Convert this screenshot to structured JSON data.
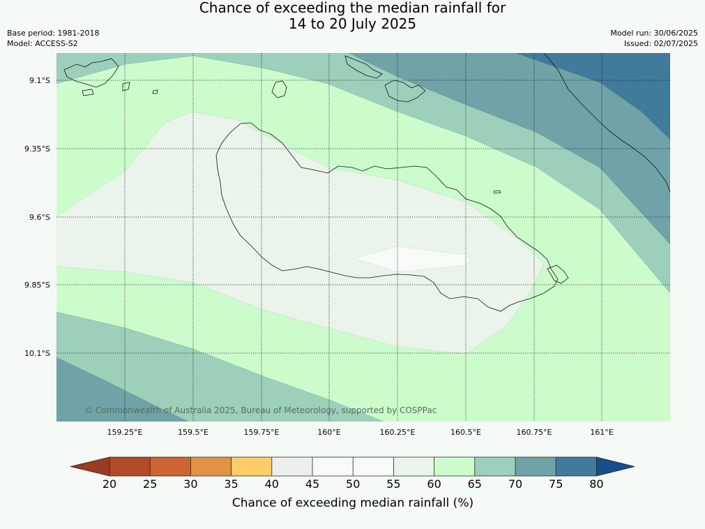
{
  "title": {
    "line1": "Chance of exceeding the median rainfall for",
    "line2": "14 to 20 July 2025"
  },
  "info": {
    "base_period": "Base period: 1981-2018",
    "model": "Model: ACCESS-S2",
    "model_run": "Model run: 30/06/2025",
    "issued": "Issued: 02/07/2025"
  },
  "map": {
    "lat_labels": [
      "9.1°S",
      "9.35°S",
      "9.6°S",
      "9.85°S",
      "10.1°S"
    ],
    "lon_labels": [
      "159.25°E",
      "159.5°E",
      "159.75°E",
      "160°E",
      "160.25°E",
      "160.5°E",
      "160.75°E",
      "161°E"
    ],
    "copyright": "© Commonwealth of Australia 2025, Bureau of Meteorology, supported by COSPPac"
  },
  "colorbar": {
    "ticks": [
      "20",
      "25",
      "30",
      "35",
      "40",
      "45",
      "50",
      "55",
      "60",
      "65",
      "70",
      "75",
      "80"
    ],
    "label": "Chance of exceeding median rainfall (%)",
    "colors": {
      "under": "#9c3a24",
      "c20_25": "#b34a28",
      "c25_30": "#cc6433",
      "c30_35": "#e29446",
      "c35_40": "#fecd6a",
      "c40_45": "#eeeeea",
      "c45_50": "#f7faf7",
      "c50_55": "#f7faf7",
      "c55_60": "#eaf4ea",
      "c60_65": "#ccfccc",
      "c65_70": "#9dd0bb",
      "c70_75": "#6fa3a7",
      "c75_80": "#417b9c",
      "over": "#15508c"
    }
  }
}
